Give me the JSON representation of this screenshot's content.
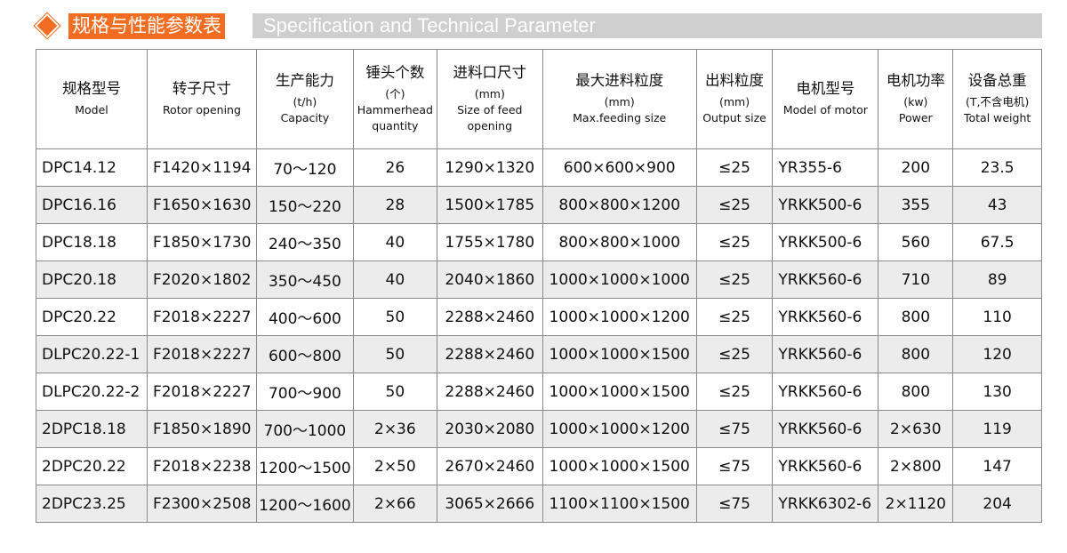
{
  "title": {
    "cn": "规格与性能参数表",
    "en": "Specification and Technical Parameter",
    "accent": "#f26d21",
    "diamond_icon": "diamond-icon"
  },
  "headers": [
    {
      "cn": "规格型号",
      "unit": "",
      "en": "Model"
    },
    {
      "cn": "转子尺寸",
      "unit": "",
      "en": "Rotor opening"
    },
    {
      "cn": "生产能力",
      "unit": "(t/h)",
      "en": "Capacity"
    },
    {
      "cn": "锤头个数",
      "unit": "(个)",
      "en": "Hammerhead quantity"
    },
    {
      "cn": "进料口尺寸",
      "unit": "(mm)",
      "en": "Size of feed opening"
    },
    {
      "cn": "最大进料粒度",
      "unit": "(mm)",
      "en": "Max.feeding size"
    },
    {
      "cn": "出料粒度",
      "unit": "(mm)",
      "en": "Output size"
    },
    {
      "cn": "电机型号",
      "unit": "",
      "en": "Model of motor"
    },
    {
      "cn": "电机功率",
      "unit": "(kw)",
      "en": "Power"
    },
    {
      "cn": "设备总重",
      "unit": "(T,不含电机)",
      "en": "Total weight"
    }
  ],
  "rows": [
    [
      "DPC14.12",
      "F1420×1194",
      "70～120",
      "26",
      "1290×1320",
      "600×600×900",
      "≤25",
      "YR355-6",
      "200",
      "23.5"
    ],
    [
      "DPC16.16",
      "F1650×1630",
      "150～220",
      "28",
      "1500×1785",
      "800×800×1200",
      "≤25",
      "YRKK500-6",
      "355",
      "43"
    ],
    [
      "DPC18.18",
      "F1850×1730",
      "240～350",
      "40",
      "1755×1780",
      "800×800×1000",
      "≤25",
      "YRKK500-6",
      "560",
      "67.5"
    ],
    [
      "DPC20.18",
      "F2020×1802",
      "350～450",
      "40",
      "2040×1860",
      "1000×1000×1000",
      "≤25",
      "YRKK560-6",
      "710",
      "89"
    ],
    [
      "DPC20.22",
      "F2018×2227",
      "400～600",
      "50",
      "2288×2460",
      "1000×1000×1200",
      "≤25",
      "YRKK560-6",
      "800",
      "110"
    ],
    [
      "DLPC20.22-1",
      "F2018×2227",
      "600～800",
      "50",
      "2288×2460",
      "1000×1000×1500",
      "≤25",
      "YRKK560-6",
      "800",
      "120"
    ],
    [
      "DLPC20.22-2",
      "F2018×2227",
      "700～900",
      "50",
      "2288×2460",
      "1000×1000×1500",
      "≤25",
      "YRKK560-6",
      "800",
      "130"
    ],
    [
      "2DPC18.18",
      "F1850×1890",
      "700～1000",
      "2×36",
      "2030×2080",
      "1000×1000×1200",
      "≤75",
      "YRKK560-6",
      "2×630",
      "119"
    ],
    [
      "2DPC20.22",
      "F2018×2238",
      "1200～1500",
      "2×50",
      "2670×2460",
      "1000×1000×1500",
      "≤75",
      "YRKK560-6",
      "2×800",
      "147"
    ],
    [
      "2DPC23.25",
      "F2300×2508",
      "1200～1600",
      "2×66",
      "3065×2666",
      "1100×1100×1500",
      "≤75",
      "YRKK6302-6",
      "2×1120",
      "204"
    ]
  ]
}
